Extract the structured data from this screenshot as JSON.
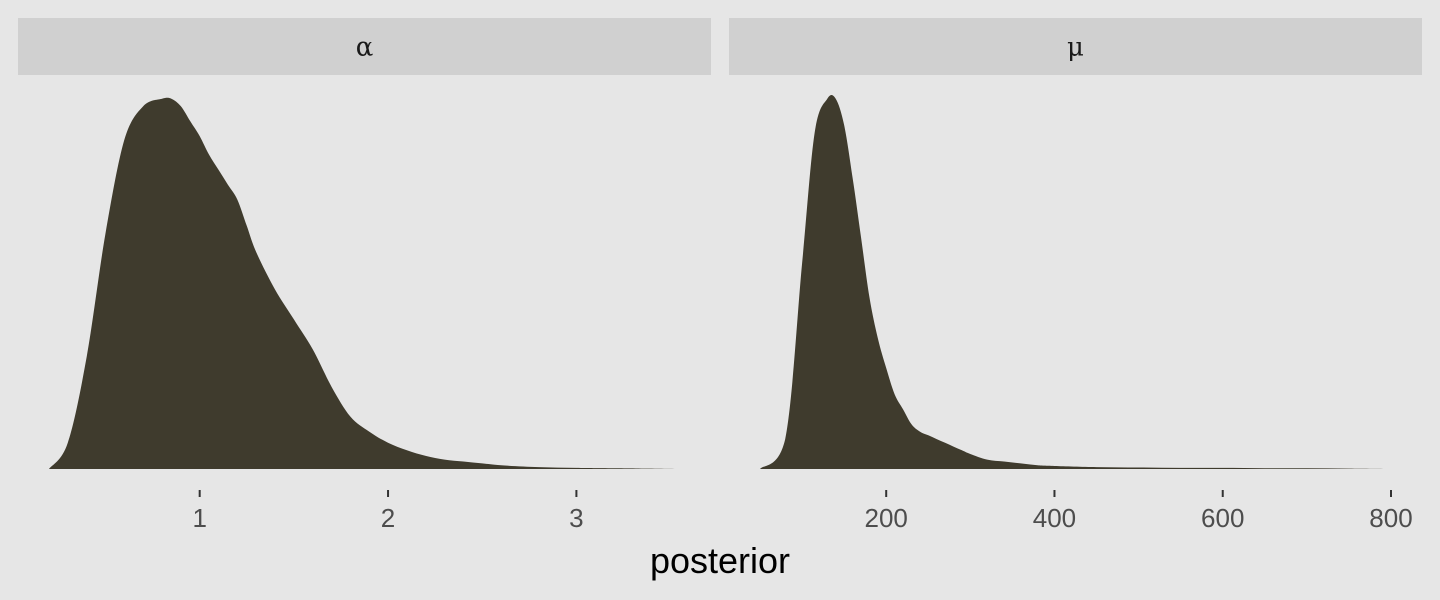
{
  "chart_data": {
    "type": "area",
    "xlabel": "posterior",
    "fill_color": "#3f3b2d",
    "panel_background": "#e6e6e6",
    "strip_background": "#d0d0d0",
    "grid": false,
    "legend": "none",
    "facets": [
      {
        "strip_label": "α",
        "xlim": [
          0.2,
          3.55
        ],
        "xticks": [
          1,
          2,
          3
        ],
        "tick_labels": [
          "1",
          "2",
          "3"
        ],
        "ylim": [
          0,
          1.0
        ],
        "x": [
          0.2,
          0.3,
          0.4,
          0.5,
          0.6,
          0.7,
          0.8,
          0.85,
          0.9,
          0.95,
          1.0,
          1.05,
          1.1,
          1.15,
          1.2,
          1.25,
          1.3,
          1.4,
          1.5,
          1.6,
          1.7,
          1.8,
          1.9,
          2.0,
          2.1,
          2.2,
          2.3,
          2.4,
          2.5,
          2.6,
          2.8,
          3.0,
          3.2,
          3.55
        ],
        "y": [
          0.0,
          0.07,
          0.3,
          0.63,
          0.88,
          0.97,
          0.99,
          0.99,
          0.97,
          0.93,
          0.89,
          0.84,
          0.8,
          0.76,
          0.72,
          0.65,
          0.58,
          0.48,
          0.4,
          0.32,
          0.22,
          0.14,
          0.1,
          0.07,
          0.05,
          0.035,
          0.025,
          0.02,
          0.015,
          0.01,
          0.005,
          0.003,
          0.002,
          0.0
        ]
      },
      {
        "strip_label": "μ",
        "xlim": [
          50,
          800
        ],
        "xticks": [
          200,
          400,
          600,
          800
        ],
        "tick_labels": [
          "200",
          "400",
          "600",
          "800"
        ],
        "ylim": [
          0,
          1.0
        ],
        "x": [
          50,
          80,
          100,
          115,
          130,
          140,
          150,
          160,
          170,
          180,
          190,
          200,
          210,
          220,
          230,
          240,
          250,
          260,
          270,
          280,
          290,
          300,
          320,
          340,
          360,
          380,
          400,
          450,
          500,
          550,
          600,
          650,
          700,
          750,
          800
        ],
        "y": [
          0.0,
          0.08,
          0.55,
          0.9,
          0.99,
          0.99,
          0.92,
          0.78,
          0.62,
          0.46,
          0.35,
          0.27,
          0.2,
          0.16,
          0.12,
          0.1,
          0.09,
          0.08,
          0.07,
          0.06,
          0.05,
          0.04,
          0.025,
          0.02,
          0.015,
          0.01,
          0.008,
          0.005,
          0.004,
          0.003,
          0.003,
          0.002,
          0.002,
          0.001,
          0.0
        ]
      }
    ]
  }
}
